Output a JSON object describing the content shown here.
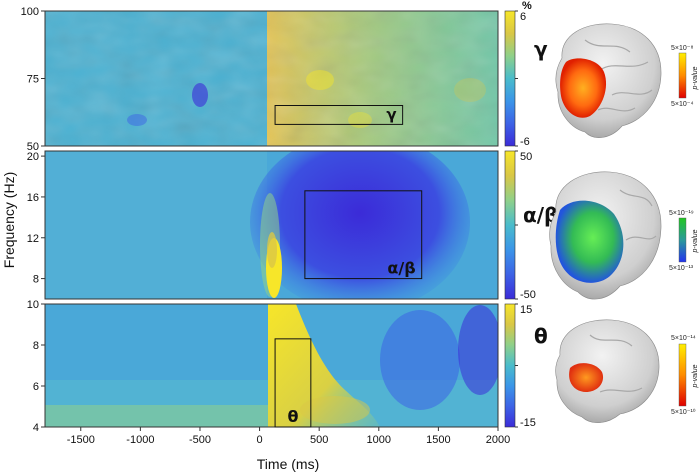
{
  "chart_data": [
    {
      "type": "heatmap",
      "band_label": "γ",
      "box_label": "γ",
      "xlabel": "Time (ms)",
      "ylabel": "Frequency (Hz)",
      "xlim": [
        -1800,
        2000
      ],
      "ylim": [
        50,
        100
      ],
      "yticks": [
        50,
        75,
        100
      ],
      "colorbar": {
        "unit": "%",
        "range": [
          -6,
          6
        ],
        "ticks": [
          6,
          0,
          -6
        ],
        "tick_labels": [
          "6",
          "",
          "-6"
        ]
      },
      "roi": {
        "t": [
          130,
          1200
        ],
        "f": [
          58,
          65
        ]
      },
      "pvalue_scale": {
        "label": "p-value",
        "top": "5×10⁻⁸",
        "bottom": "5×10⁻⁴",
        "colors": [
          "#ffee00",
          "#ff8c00",
          "#e00000"
        ]
      }
    },
    {
      "type": "heatmap",
      "band_label": "α/β",
      "box_label": "α/β",
      "xlabel": "Time (ms)",
      "ylabel": "Frequency (Hz)",
      "xlim": [
        -1800,
        2000
      ],
      "ylim": [
        6,
        20.5
      ],
      "yticks": [
        8,
        12,
        16,
        20
      ],
      "colorbar": {
        "range": [
          -50,
          50
        ],
        "ticks": [
          50,
          0,
          -50
        ],
        "tick_labels": [
          "50",
          "",
          "-50"
        ]
      },
      "roi": {
        "t": [
          380,
          1360
        ],
        "f": [
          8,
          16.6
        ]
      },
      "pvalue_scale": {
        "label": "p-value",
        "top": "5×10⁻¹⁹",
        "bottom": "5×10⁻¹³",
        "colors": [
          "#22c622",
          "#2a9a9a",
          "#2233ee"
        ]
      }
    },
    {
      "type": "heatmap",
      "band_label": "θ",
      "box_label": "θ",
      "xlabel": "Time (ms)",
      "ylabel": "Frequency (Hz)",
      "xlim": [
        -1800,
        2000
      ],
      "ylim": [
        4,
        10
      ],
      "yticks": [
        4,
        6,
        8,
        10
      ],
      "xticks": [
        -1500,
        -1000,
        -500,
        0,
        500,
        1000,
        1500,
        2000
      ],
      "colorbar": {
        "range": [
          -15,
          15
        ],
        "ticks": [
          15,
          0,
          -15
        ],
        "tick_labels": [
          "15",
          "",
          "-15"
        ]
      },
      "roi": {
        "t": [
          130,
          430
        ],
        "f": [
          4,
          8.3
        ]
      },
      "pvalue_scale": {
        "label": "p-value",
        "top": "5×10⁻¹⁴",
        "bottom": "5×10⁻¹⁰",
        "colors": [
          "#ffee00",
          "#ff8c00",
          "#e00000"
        ]
      }
    }
  ],
  "colormap": [
    "#3b2bd8",
    "#3d63e6",
    "#3b95e8",
    "#4abccb",
    "#8fd08a",
    "#d9c746",
    "#f7e629"
  ],
  "brain_blob_colors": {
    "gamma": "#ff6a10",
    "alpha_beta": "#33cc44",
    "theta": "#ff5a18"
  }
}
